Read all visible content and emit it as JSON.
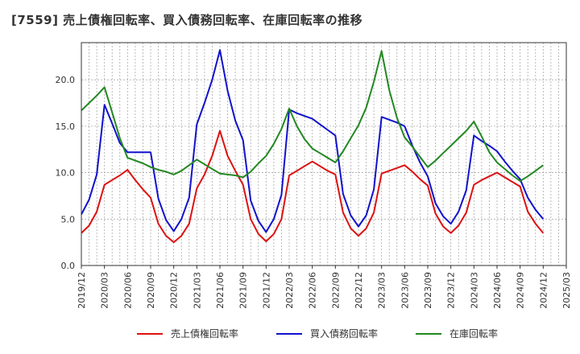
{
  "chart_data": {
    "type": "line",
    "title": "[7559]  売上債権回転率、買入債務回転率、在庫回転率の推移",
    "xlabel": "",
    "ylabel": "",
    "ylim": [
      0,
      24
    ],
    "yticks": [
      "0.0",
      "5.0",
      "10.0",
      "15.0",
      "20.0"
    ],
    "ytick_values": [
      0,
      5,
      10,
      15,
      20
    ],
    "xticks": [
      "2019/12",
      "2020/03",
      "2020/06",
      "2020/09",
      "2020/12",
      "2021/03",
      "2021/06",
      "2021/09",
      "2021/12",
      "2022/03",
      "2022/06",
      "2022/09",
      "2022/12",
      "2023/03",
      "2023/06",
      "2023/09",
      "2023/12",
      "2024/03",
      "2024/06",
      "2024/09",
      "2024/12",
      "2025/03"
    ],
    "x": [
      "2019/12",
      "2020/01",
      "2020/02",
      "2020/03",
      "2020/04",
      "2020/05",
      "2020/06",
      "2020/07",
      "2020/08",
      "2020/09",
      "2020/10",
      "2020/11",
      "2020/12",
      "2021/01",
      "2021/02",
      "2021/03",
      "2021/04",
      "2021/05",
      "2021/06",
      "2021/07",
      "2021/08",
      "2021/09",
      "2021/10",
      "2021/11",
      "2021/12",
      "2022/01",
      "2022/02",
      "2022/03",
      "2022/04",
      "2022/05",
      "2022/06",
      "2022/07",
      "2022/08",
      "2022/09",
      "2022/10",
      "2022/11",
      "2022/12",
      "2023/01",
      "2023/02",
      "2023/03",
      "2023/04",
      "2023/05",
      "2023/06",
      "2023/07",
      "2023/08",
      "2023/09",
      "2023/10",
      "2023/11",
      "2023/12",
      "2024/01",
      "2024/02",
      "2024/03",
      "2024/04",
      "2024/05",
      "2024/06",
      "2024/07",
      "2024/08",
      "2024/09",
      "2024/10",
      "2024/11",
      "2024/12"
    ],
    "grid": true,
    "legend_position": "bottom",
    "series": [
      {
        "name": "売上債権回転率",
        "color": "#dd1111",
        "values": [
          3.5,
          4.3,
          5.8,
          8.7,
          9.2,
          9.7,
          10.3,
          9.2,
          8.2,
          7.3,
          4.5,
          3.2,
          2.5,
          3.2,
          4.5,
          8.3,
          9.8,
          11.8,
          14.5,
          11.8,
          10.2,
          8.7,
          5.0,
          3.4,
          2.6,
          3.4,
          5.0,
          9.7,
          10.2,
          10.7,
          11.2,
          10.7,
          10.2,
          9.8,
          5.7,
          4.0,
          3.2,
          4.0,
          5.7,
          9.9,
          10.2,
          10.5,
          10.8,
          10.1,
          9.3,
          8.6,
          5.6,
          4.2,
          3.5,
          4.3,
          5.7,
          8.7,
          9.2,
          9.6,
          10.0,
          9.5,
          9.0,
          8.5,
          5.8,
          4.5,
          3.5
        ]
      },
      {
        "name": "買入債務回転率",
        "color": "#1111cc",
        "values": [
          5.5,
          7.1,
          9.8,
          17.3,
          15.3,
          13.2,
          12.2,
          12.2,
          12.2,
          12.2,
          7.2,
          4.9,
          3.7,
          5.0,
          7.3,
          15.2,
          17.5,
          20.0,
          23.2,
          18.8,
          15.6,
          13.5,
          7.0,
          4.8,
          3.6,
          5.0,
          7.6,
          16.8,
          16.4,
          16.1,
          15.8,
          15.2,
          14.6,
          14.0,
          7.7,
          5.4,
          4.2,
          5.4,
          8.2,
          16.0,
          15.7,
          15.4,
          15.0,
          12.9,
          11.1,
          9.6,
          6.7,
          5.3,
          4.5,
          5.8,
          8.1,
          14.0,
          13.4,
          12.9,
          12.3,
          11.2,
          10.2,
          9.3,
          7.3,
          6.0,
          5.0
        ]
      },
      {
        "name": "在庫回転率",
        "color": "#228822",
        "values": [
          16.7,
          17.5,
          18.3,
          19.2,
          16.5,
          13.7,
          11.6,
          11.3,
          11.0,
          10.6,
          10.3,
          10.1,
          9.8,
          10.2,
          10.8,
          11.4,
          10.9,
          10.4,
          9.9,
          9.8,
          9.7,
          9.5,
          10.1,
          11.0,
          11.8,
          13.1,
          14.7,
          16.9,
          15.0,
          13.6,
          12.6,
          12.1,
          11.6,
          11.1,
          12.3,
          13.7,
          15.1,
          17.0,
          19.8,
          23.1,
          18.9,
          15.9,
          13.8,
          12.8,
          11.7,
          10.6,
          11.3,
          12.1,
          12.9,
          13.7,
          14.5,
          15.5,
          13.9,
          12.2,
          11.1,
          10.4,
          9.7,
          9.1,
          9.6,
          10.2,
          10.8
        ]
      }
    ]
  }
}
